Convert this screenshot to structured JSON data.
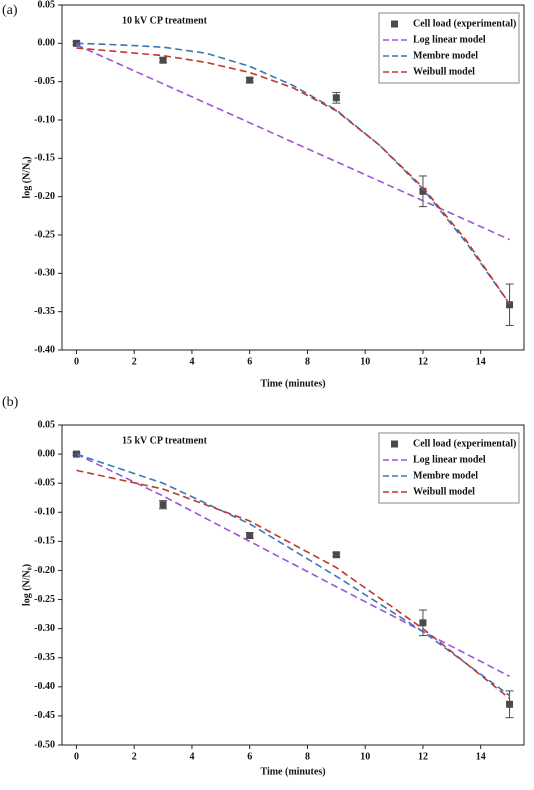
{
  "chart_data": [
    {
      "type": "line",
      "panel_label": "(a)",
      "title": "10 kV CP treatment",
      "x_label": "Time (minutes)",
      "y_label": "log (N/N₀)",
      "xlim": [
        -0.5,
        15.5
      ],
      "ylim": [
        -0.4,
        0.05
      ],
      "xticks": [
        0,
        2,
        4,
        6,
        8,
        10,
        12,
        14
      ],
      "yticks": [
        0.05,
        {
          "value": 0,
          "label": "0.00"
        },
        -0.05,
        {
          "value": -0.1,
          "label": "-0.10"
        },
        -0.15,
        {
          "value": -0.2,
          "label": "-0.20"
        },
        -0.25,
        {
          "value": -0.3,
          "label": "-0.30"
        },
        -0.35,
        {
          "value": -0.4,
          "label": "-0.40"
        }
      ],
      "legend": "top-right",
      "series": [
        {
          "name": "Cell load (experimental)",
          "color": "#4a4a4a",
          "marker": "square",
          "x": [
            0,
            3,
            6,
            9,
            12,
            15
          ],
          "values": [
            0,
            -0.022,
            -0.048,
            -0.071,
            -0.193,
            -0.341
          ],
          "errors": [
            0.002,
            0.003,
            0.003,
            0.007,
            0.02,
            0.027
          ]
        },
        {
          "name": "Log linear model",
          "color": "#9b55d8",
          "dashed": true,
          "x": [
            0,
            15
          ],
          "values": [
            -0.002,
            -0.256
          ]
        },
        {
          "name": "Membre model",
          "color": "#3a78b5",
          "dashed": true,
          "x": [
            0,
            1.5,
            3,
            4.5,
            6,
            7.5,
            9,
            10.5,
            12,
            13.5,
            15
          ],
          "values": [
            0,
            -0.002,
            -0.005,
            -0.013,
            -0.03,
            -0.055,
            -0.087,
            -0.133,
            -0.19,
            -0.26,
            -0.34
          ]
        },
        {
          "name": "Weibull model",
          "color": "#c0392b",
          "dashed": true,
          "x": [
            0,
            1.5,
            3,
            4.5,
            6,
            7.5,
            9,
            10.5,
            12,
            13.5,
            15
          ],
          "values": [
            -0.006,
            -0.011,
            -0.016,
            -0.025,
            -0.038,
            -0.058,
            -0.088,
            -0.133,
            -0.188,
            -0.257,
            -0.34
          ]
        }
      ]
    },
    {
      "type": "line",
      "panel_label": "(b)",
      "title": "15 kV CP treatment",
      "x_label": "Time (minutes)",
      "y_label": "log (N/N₀)",
      "xlim": [
        -0.5,
        15.5
      ],
      "ylim": [
        -0.5,
        0.05
      ],
      "xticks": [
        0,
        2,
        4,
        6,
        8,
        10,
        12,
        14
      ],
      "yticks": [
        0.05,
        {
          "value": 0,
          "label": "0.00"
        },
        -0.05,
        {
          "value": -0.1,
          "label": "-0.10"
        },
        -0.15,
        {
          "value": -0.2,
          "label": "-0.20"
        },
        -0.25,
        {
          "value": -0.3,
          "label": "-0.30"
        },
        -0.35,
        {
          "value": -0.4,
          "label": "-0.40"
        },
        -0.45,
        {
          "value": -0.5,
          "label": "-0.50"
        }
      ],
      "legend": "top-right",
      "series": [
        {
          "name": "Cell load (experimental)",
          "color": "#4a4a4a",
          "marker": "square",
          "x": [
            0,
            3,
            6,
            9,
            12,
            15
          ],
          "values": [
            0,
            -0.087,
            -0.14,
            -0.173,
            -0.29,
            -0.43
          ],
          "errors": [
            0.002,
            0.007,
            0.005,
            0.003,
            0.022,
            0.023
          ]
        },
        {
          "name": "Log linear model",
          "color": "#9b55d8",
          "dashed": true,
          "x": [
            0,
            3,
            6,
            9,
            12,
            15
          ],
          "values": [
            0,
            -0.072,
            -0.15,
            -0.228,
            -0.305,
            -0.382
          ]
        },
        {
          "name": "Membre model",
          "color": "#3a78b5",
          "dashed": true,
          "x": [
            0,
            3,
            6,
            9,
            12,
            15
          ],
          "values": [
            0,
            -0.05,
            -0.12,
            -0.21,
            -0.305,
            -0.415
          ]
        },
        {
          "name": "Weibull model",
          "color": "#c0392b",
          "dashed": true,
          "x": [
            0,
            3,
            6,
            9,
            12,
            15
          ],
          "values": [
            -0.028,
            -0.06,
            -0.115,
            -0.195,
            -0.3,
            -0.42
          ]
        }
      ]
    }
  ]
}
